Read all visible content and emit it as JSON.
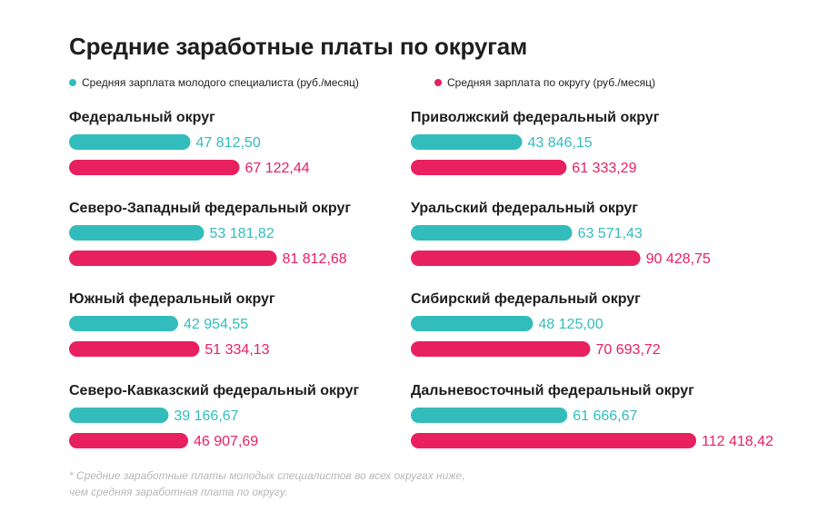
{
  "chart_data": {
    "type": "bar",
    "title": "Средние заработные платы по округам",
    "series": [
      {
        "name": "Средняя зарплата молодого специалиста (руб./месяц)",
        "color": "#33bcbc"
      },
      {
        "name": "Средняя зарплата по округу (руб./месяц)",
        "color": "#e8205f"
      }
    ],
    "groups": [
      {
        "category": "Федеральный округ",
        "young": 47812.5,
        "young_label": "47 812,50",
        "regional": 67122.44,
        "regional_label": "67 122,44"
      },
      {
        "category": "Северо-Западный федеральный округ",
        "young": 53181.82,
        "young_label": "53 181,82",
        "regional": 81812.68,
        "regional_label": "81 812,68"
      },
      {
        "category": "Южный федеральный округ",
        "young": 42954.55,
        "young_label": "42 954,55",
        "regional": 51334.13,
        "regional_label": "51 334,13"
      },
      {
        "category": "Северо-Кавказский федеральный округ",
        "young": 39166.67,
        "young_label": "39 166,67",
        "regional": 46907.69,
        "regional_label": "46 907,69"
      },
      {
        "category": "Приволжский федеральный округ",
        "young": 43846.15,
        "young_label": "43 846,15",
        "regional": 61333.29,
        "regional_label": "61 333,29"
      },
      {
        "category": "Уральский федеральный округ",
        "young": 63571.43,
        "young_label": "63 571,43",
        "regional": 90428.75,
        "regional_label": "90 428,75"
      },
      {
        "category": "Сибирский федеральный округ",
        "young": 48125.0,
        "young_label": "48 125,00",
        "regional": 70693.72,
        "regional_label": "70 693,72"
      },
      {
        "category": "Дальневосточный федеральный округ",
        "young": 61666.67,
        "young_label": "61 666,67",
        "regional": 112418.42,
        "regional_label": "112 418,42"
      }
    ],
    "footnote": [
      "* Средние заработные платы молодых специалистов во всех округах ниже,",
      "чем средняя заработная плата по округу."
    ]
  }
}
